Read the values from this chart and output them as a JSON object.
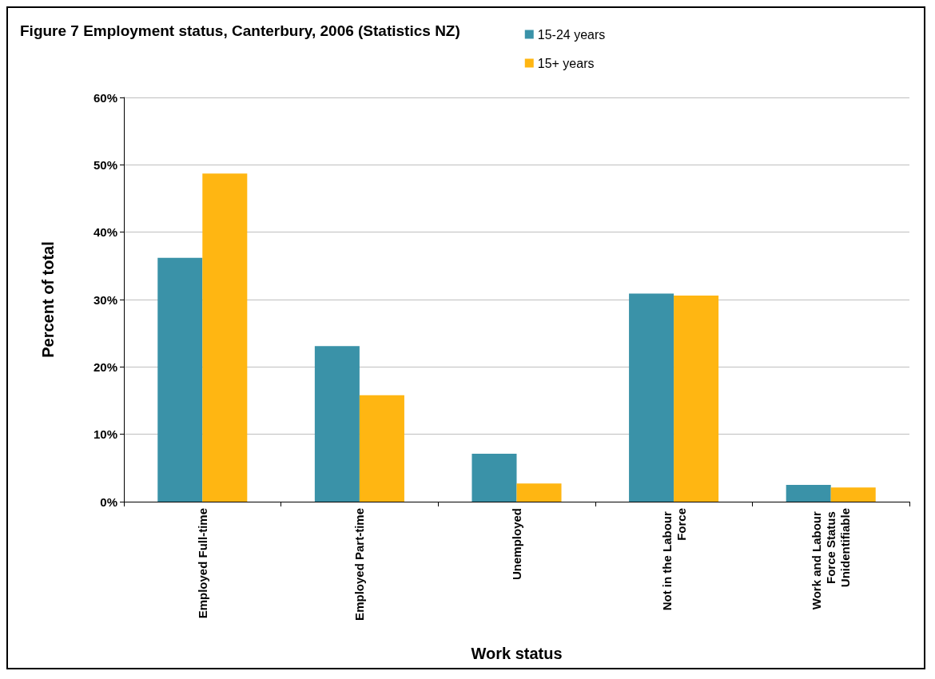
{
  "chart_data": {
    "type": "bar",
    "title": "Figure 7 Employment status, Canterbury, 2006 (Statistics NZ)",
    "xlabel": "Work status",
    "ylabel": "Percent of total",
    "categories": [
      "Employed Full-time",
      "Employed Part-time",
      "Unemployed",
      "Not in the Labour Force",
      "Work and Labour Force Status Unidentifiable"
    ],
    "series": [
      {
        "name": "15-24 years",
        "color": "#3a92a8",
        "values": [
          36.2,
          23.1,
          7.1,
          30.9,
          2.5
        ]
      },
      {
        "name": "15+ years",
        "color": "#ffb612",
        "values": [
          48.7,
          15.8,
          2.7,
          30.6,
          2.1
        ]
      }
    ],
    "ylim": [
      0,
      60
    ],
    "yticks": [
      {
        "value": 0,
        "label": "0%"
      },
      {
        "value": 10,
        "label": "10%"
      },
      {
        "value": 20,
        "label": "20%"
      },
      {
        "value": 30,
        "label": "30%"
      },
      {
        "value": 40,
        "label": "40%"
      },
      {
        "value": 50,
        "label": "50%"
      },
      {
        "value": 60,
        "label": "60%"
      }
    ],
    "grid": "y",
    "legend": "top"
  }
}
